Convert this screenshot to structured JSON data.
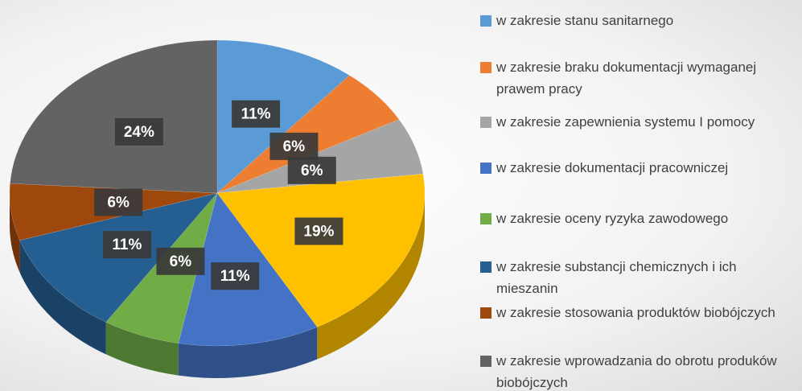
{
  "chart_data": {
    "type": "pie3d",
    "categories": [
      "w zakresie stanu sanitarnego",
      "w zakresie braku dokumentacji wymaganej prawem pracy",
      "w zakresie zapewnienia systemu I pomocy",
      null,
      "w zakresie dokumentacji pracowniczej",
      "w zakresie oceny ryzyka zawodowego",
      "w zakresie substancji chemicznych i ich mieszanin",
      "w zakresie stosowania produktów biobójczych",
      "w zakresie wprowadzania do obrotu produków biobójczych"
    ],
    "values": [
      11,
      6,
      6,
      19,
      11,
      6,
      11,
      6,
      24
    ],
    "value_labels": [
      "11%",
      "6%",
      "6%",
      "19%",
      "11%",
      "6%",
      "11%",
      "6%",
      "24%"
    ],
    "colors": [
      "#5b9bd5",
      "#ed7d31",
      "#a5a5a5",
      "#ffc000",
      "#4472c4",
      "#70ad47",
      "#255e91",
      "#9e480e",
      "#636363"
    ],
    "legend": "right"
  }
}
